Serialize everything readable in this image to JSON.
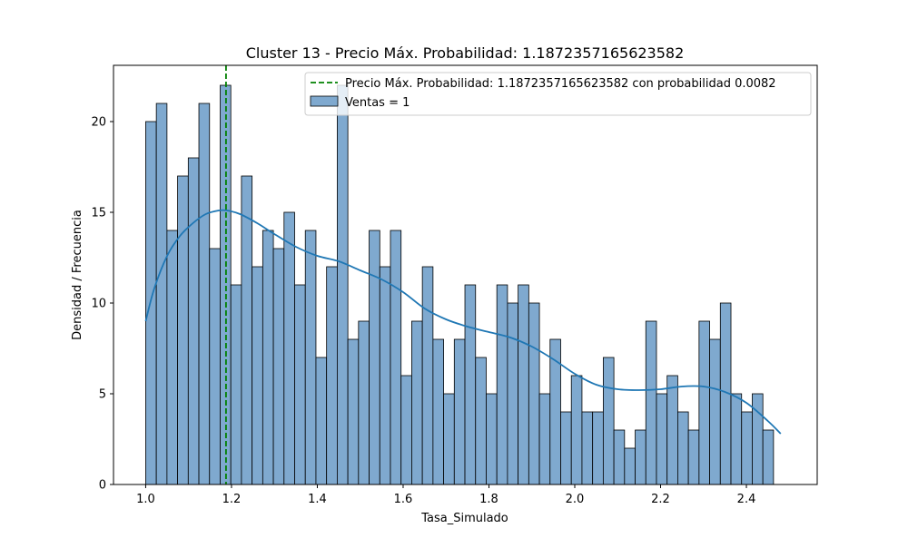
{
  "chart_data": {
    "type": "histogram",
    "title": "Cluster 13 - Precio Máx. Probabilidad: 1.1872357165623582",
    "xlabel": "Tasa_Simulado",
    "ylabel": "Densidad / Frecuencia",
    "xlim": [
      0.925,
      2.565
    ],
    "ylim": [
      0,
      23.1
    ],
    "x_ticks": [
      "1.0",
      "1.2",
      "1.4",
      "1.6",
      "1.8",
      "2.0",
      "2.2",
      "2.4"
    ],
    "x_tick_values": [
      1.0,
      1.2,
      1.4,
      1.6,
      1.8,
      2.0,
      2.2,
      2.4
    ],
    "y_ticks": [
      "0",
      "5",
      "10",
      "15",
      "20"
    ],
    "y_tick_values": [
      0,
      5,
      10,
      15,
      20
    ],
    "grid": false,
    "legend_position": "upper-right",
    "bins": {
      "start": 1.0,
      "width": 0.0248,
      "counts": [
        20,
        21,
        14,
        17,
        18,
        21,
        13,
        22,
        11,
        17,
        12,
        14,
        13,
        15,
        11,
        14,
        7,
        12,
        22,
        8,
        9,
        14,
        12,
        14,
        6,
        9,
        12,
        8,
        5,
        8,
        11,
        7,
        5,
        11,
        10,
        11,
        10,
        5,
        8,
        4,
        6,
        4,
        4,
        7,
        3,
        2,
        3,
        9,
        5,
        6,
        4,
        3,
        9,
        8,
        10,
        5,
        4,
        5,
        3
      ],
      "color": "#7fa9cf",
      "edge_color": "#000000"
    },
    "kde": {
      "color": "#1f77b4",
      "x": [
        1.0,
        1.02,
        1.05,
        1.08,
        1.11,
        1.14,
        1.17,
        1.19,
        1.22,
        1.26,
        1.3,
        1.35,
        1.4,
        1.45,
        1.5,
        1.55,
        1.6,
        1.65,
        1.7,
        1.75,
        1.8,
        1.85,
        1.9,
        1.95,
        2.0,
        2.05,
        2.1,
        2.15,
        2.2,
        2.25,
        2.3,
        2.35,
        2.4,
        2.45,
        2.48
      ],
      "y": [
        9.0,
        10.8,
        12.6,
        13.7,
        14.4,
        14.9,
        15.1,
        15.1,
        14.9,
        14.4,
        13.8,
        13.1,
        12.6,
        12.3,
        11.8,
        11.3,
        10.6,
        9.7,
        9.1,
        8.7,
        8.4,
        8.1,
        7.6,
        6.9,
        6.1,
        5.5,
        5.25,
        5.2,
        5.25,
        5.4,
        5.4,
        5.1,
        4.5,
        3.5,
        2.8
      ]
    },
    "series": [
      {
        "name": "Ventas = 1",
        "kind": "bars"
      }
    ],
    "reference_line": {
      "x": 1.1872357165623582,
      "color": "#008000",
      "style": "dashed",
      "label": "Precio Máx. Probabilidad: 1.1872357165623582 con probabilidad 0.0082"
    }
  }
}
